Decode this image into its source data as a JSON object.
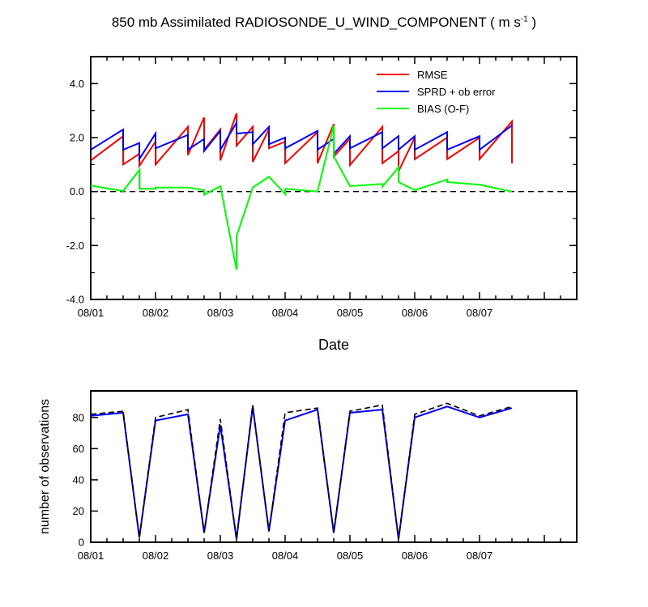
{
  "title_main": "850 mb Assimilated RADIOSONDE_U_WIND_COMPONENT ( m s",
  "title_exp": "-1",
  "title_end": " )",
  "chart_data": [
    {
      "type": "line",
      "xlabel": "Date",
      "ylabel": "",
      "xlim": [
        0,
        7.5
      ],
      "ylim": [
        -4,
        5
      ],
      "yticks": [
        "4.0",
        "2.0",
        "0.0",
        "-2.0",
        "-4.0"
      ],
      "ytick_values": [
        4,
        2,
        0,
        -2,
        -4
      ],
      "xtick_labels": [
        "08/01",
        "08/02",
        "08/03",
        "08/04",
        "08/05",
        "08/06",
        "08/07"
      ],
      "xtick_values": [
        0,
        1,
        2,
        3,
        4,
        5,
        6
      ],
      "zero_line": true,
      "legend_position": "top-right",
      "series": [
        {
          "name": "RMSE",
          "color": "#ff0000",
          "points": [
            [
              0,
              1.15
            ],
            [
              0.5,
              2.05
            ],
            [
              0.5,
              1.0
            ],
            [
              0.75,
              1.4
            ],
            [
              0.75,
              0.95
            ],
            [
              1,
              1.85
            ],
            [
              1,
              1.0
            ],
            [
              1.5,
              2.4
            ],
            [
              1.5,
              1.35
            ],
            [
              1.75,
              2.75
            ],
            [
              1.75,
              1.55
            ],
            [
              2,
              2.3
            ],
            [
              2,
              1.15
            ],
            [
              2.25,
              2.9
            ],
            [
              2.25,
              1.7
            ],
            [
              2.5,
              2.4
            ],
            [
              2.5,
              1.1
            ],
            [
              2.75,
              2.3
            ],
            [
              2.75,
              1.6
            ],
            [
              3,
              1.85
            ],
            [
              3,
              1.05
            ],
            [
              3.5,
              2.2
            ],
            [
              3.5,
              1.05
            ],
            [
              3.75,
              2.5
            ],
            [
              3.75,
              1.3
            ],
            [
              4,
              1.95
            ],
            [
              4,
              0.98
            ],
            [
              4.5,
              2.4
            ],
            [
              4.5,
              1.05
            ],
            [
              4.75,
              1.5
            ],
            [
              4.75,
              0.75
            ],
            [
              5,
              2.0
            ],
            [
              5,
              1.2
            ],
            [
              5.5,
              2.0
            ],
            [
              5.5,
              1.2
            ],
            [
              6,
              2.0
            ],
            [
              6,
              1.2
            ],
            [
              6.5,
              2.6
            ],
            [
              6.5,
              1.05
            ]
          ]
        },
        {
          "name": "SPRD + ob error",
          "color": "#0000ff",
          "points": [
            [
              0,
              1.55
            ],
            [
              0.5,
              2.3
            ],
            [
              0.5,
              1.55
            ],
            [
              0.75,
              1.8
            ],
            [
              0.75,
              1.2
            ],
            [
              1,
              2.15
            ],
            [
              1,
              1.6
            ],
            [
              1.5,
              2.1
            ],
            [
              1.5,
              1.55
            ],
            [
              1.75,
              1.95
            ],
            [
              1.75,
              1.5
            ],
            [
              2,
              2.25
            ],
            [
              2,
              1.55
            ],
            [
              2.25,
              2.55
            ],
            [
              2.25,
              2.15
            ],
            [
              2.5,
              2.2
            ],
            [
              2.5,
              1.75
            ],
            [
              2.75,
              2.4
            ],
            [
              2.75,
              1.75
            ],
            [
              3,
              2.0
            ],
            [
              3,
              1.6
            ],
            [
              3.5,
              2.25
            ],
            [
              3.5,
              1.55
            ],
            [
              3.75,
              1.95
            ],
            [
              3.75,
              1.4
            ],
            [
              4,
              2.05
            ],
            [
              4,
              1.6
            ],
            [
              4.5,
              2.2
            ],
            [
              4.5,
              1.6
            ],
            [
              4.75,
              2.05
            ],
            [
              4.75,
              1.55
            ],
            [
              5,
              2.05
            ],
            [
              5,
              1.55
            ],
            [
              5.5,
              2.2
            ],
            [
              5.5,
              1.55
            ],
            [
              6,
              2.05
            ],
            [
              6,
              1.55
            ],
            [
              6.5,
              2.45
            ]
          ]
        },
        {
          "name": "BIAS (O-F)",
          "color": "#00ff00",
          "points": [
            [
              0,
              0.22
            ],
            [
              0.5,
              0.02
            ],
            [
              0.75,
              0.8
            ],
            [
              0.75,
              0.1
            ],
            [
              1,
              0.1
            ],
            [
              1,
              0.15
            ],
            [
              1.5,
              0.15
            ],
            [
              1.75,
              0.05
            ],
            [
              1.75,
              -0.12
            ],
            [
              2,
              0.2
            ],
            [
              2.25,
              -2.9
            ],
            [
              2.25,
              -1.65
            ],
            [
              2.5,
              0.15
            ],
            [
              2.75,
              0.55
            ],
            [
              3,
              -0.1
            ],
            [
              3,
              0.1
            ],
            [
              3.5,
              0.0
            ],
            [
              3.75,
              2.45
            ],
            [
              3.75,
              1.3
            ],
            [
              4,
              0.2
            ],
            [
              4.5,
              0.28
            ],
            [
              4.5,
              0.18
            ],
            [
              4.75,
              0.9
            ],
            [
              4.75,
              0.35
            ],
            [
              5,
              0.05
            ],
            [
              5.5,
              0.45
            ],
            [
              5.5,
              0.35
            ],
            [
              6,
              0.25
            ],
            [
              6.5,
              0.0
            ]
          ]
        }
      ]
    },
    {
      "type": "line",
      "xlabel": "",
      "ylabel": "number of observations",
      "xlim": [
        0,
        7.5
      ],
      "ylim": [
        0,
        97
      ],
      "yticks": [
        "80",
        "60",
        "40",
        "20",
        "0"
      ],
      "ytick_values": [
        80,
        60,
        40,
        20,
        0
      ],
      "xtick_labels": [
        "08/01",
        "08/02",
        "08/03",
        "08/04",
        "08/05",
        "08/06",
        "08/07"
      ],
      "xtick_values": [
        0,
        1,
        2,
        3,
        4,
        5,
        6
      ],
      "series": [
        {
          "color": "#0000ff",
          "style": "solid",
          "points": [
            [
              0,
              81
            ],
            [
              0.5,
              83
            ],
            [
              0.75,
              3
            ],
            [
              1,
              78
            ],
            [
              1.5,
              82
            ],
            [
              1.75,
              6
            ],
            [
              2,
              75
            ],
            [
              2.25,
              2
            ],
            [
              2.5,
              87
            ],
            [
              2.75,
              7
            ],
            [
              3,
              78
            ],
            [
              3.5,
              85
            ],
            [
              3.75,
              6
            ],
            [
              4,
              83
            ],
            [
              4.5,
              85
            ],
            [
              4.75,
              2
            ],
            [
              5,
              80
            ],
            [
              5.5,
              87
            ],
            [
              6,
              80
            ],
            [
              6.5,
              86
            ]
          ]
        },
        {
          "color": "#000000",
          "style": "dashed",
          "points": [
            [
              0,
              82
            ],
            [
              0.5,
              84
            ],
            [
              0.75,
              3
            ],
            [
              1,
              80
            ],
            [
              1.5,
              85
            ],
            [
              1.75,
              6
            ],
            [
              2,
              79
            ],
            [
              2.25,
              2
            ],
            [
              2.5,
              88
            ],
            [
              2.75,
              7
            ],
            [
              3,
              83
            ],
            [
              3.5,
              86
            ],
            [
              3.75,
              6
            ],
            [
              4,
              84
            ],
            [
              4.5,
              88
            ],
            [
              4.75,
              2
            ],
            [
              5,
              82
            ],
            [
              5.5,
              89
            ],
            [
              6,
              81
            ],
            [
              6.5,
              87
            ]
          ]
        }
      ]
    }
  ]
}
